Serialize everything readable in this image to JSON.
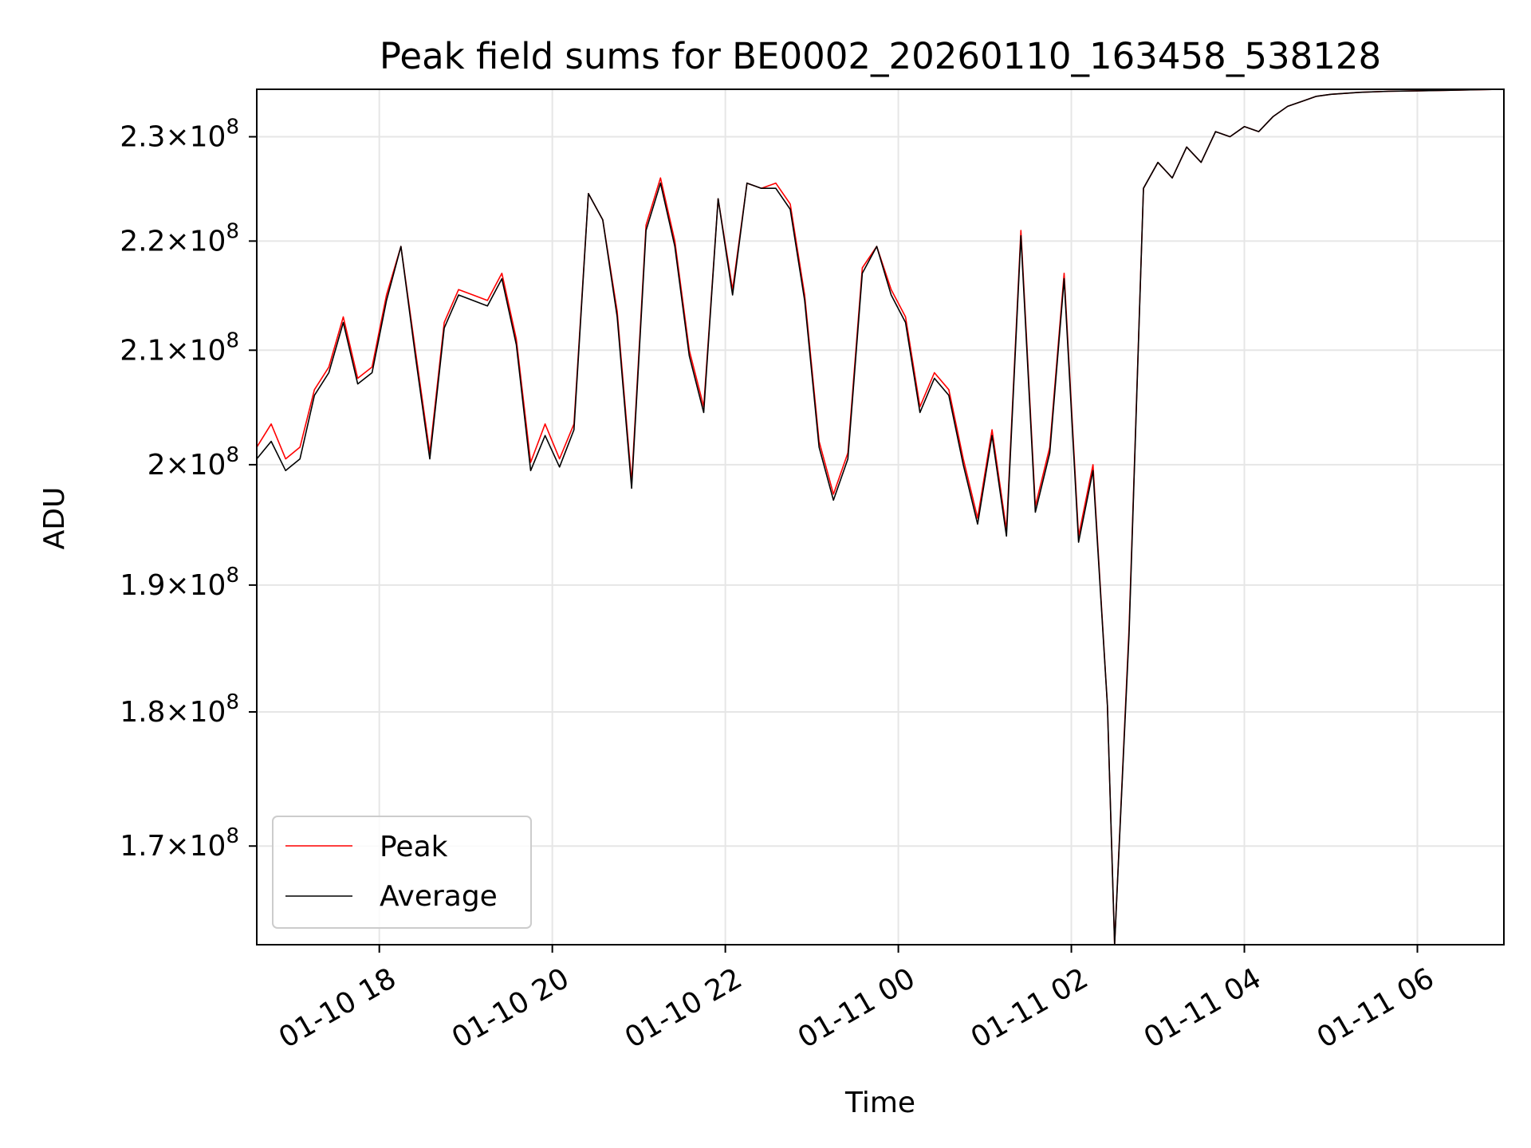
{
  "chart_data": {
    "type": "line",
    "title": "Peak field sums for BE0002_20260110_163458_538128",
    "xlabel": "Time",
    "ylabel": "ADU",
    "y_scale": "log",
    "ylim": [
      163000000,
      234700000
    ],
    "xlim": [
      "2026-01-10 16:35",
      "2026-01-11 07:00"
    ],
    "x_ticks": [
      {
        "t": "2026-01-10 18:00",
        "label": "01-10 18"
      },
      {
        "t": "2026-01-10 20:00",
        "label": "01-10 20"
      },
      {
        "t": "2026-01-10 22:00",
        "label": "01-10 22"
      },
      {
        "t": "2026-01-11 00:00",
        "label": "01-11 00"
      },
      {
        "t": "2026-01-11 02:00",
        "label": "01-11 02"
      },
      {
        "t": "2026-01-11 04:00",
        "label": "01-11 04"
      },
      {
        "t": "2026-01-11 06:00",
        "label": "01-11 06"
      }
    ],
    "y_ticks": [
      {
        "v": 170000000,
        "mantissa": "1.7",
        "exp": "8"
      },
      {
        "v": 180000000,
        "mantissa": "1.8",
        "exp": "8"
      },
      {
        "v": 190000000,
        "mantissa": "1.9",
        "exp": "8"
      },
      {
        "v": 200000000,
        "mantissa": "2",
        "exp": "8"
      },
      {
        "v": 210000000,
        "mantissa": "2.1",
        "exp": "8"
      },
      {
        "v": 220000000,
        "mantissa": "2.2",
        "exp": "8"
      },
      {
        "v": 230000000,
        "mantissa": "2.3",
        "exp": "8"
      }
    ],
    "grid": true,
    "legend_position": "lower-left",
    "series": [
      {
        "name": "Peak",
        "color": "#ff0000",
        "x": [
          "2026-01-10 16:35",
          "2026-01-10 16:45",
          "2026-01-10 16:55",
          "2026-01-10 17:05",
          "2026-01-10 17:15",
          "2026-01-10 17:25",
          "2026-01-10 17:35",
          "2026-01-10 17:45",
          "2026-01-10 17:55",
          "2026-01-10 18:05",
          "2026-01-10 18:15",
          "2026-01-10 18:25",
          "2026-01-10 18:35",
          "2026-01-10 18:45",
          "2026-01-10 18:55",
          "2026-01-10 19:05",
          "2026-01-10 19:15",
          "2026-01-10 19:25",
          "2026-01-10 19:35",
          "2026-01-10 19:45",
          "2026-01-10 19:55",
          "2026-01-10 20:05",
          "2026-01-10 20:15",
          "2026-01-10 20:25",
          "2026-01-10 20:35",
          "2026-01-10 20:45",
          "2026-01-10 20:55",
          "2026-01-10 21:05",
          "2026-01-10 21:15",
          "2026-01-10 21:25",
          "2026-01-10 21:35",
          "2026-01-10 21:45",
          "2026-01-10 21:55",
          "2026-01-10 22:05",
          "2026-01-10 22:15",
          "2026-01-10 22:25",
          "2026-01-10 22:35",
          "2026-01-10 22:45",
          "2026-01-10 22:55",
          "2026-01-10 23:05",
          "2026-01-10 23:15",
          "2026-01-10 23:25",
          "2026-01-10 23:35",
          "2026-01-10 23:45",
          "2026-01-10 23:55",
          "2026-01-11 00:05",
          "2026-01-11 00:15",
          "2026-01-11 00:25",
          "2026-01-11 00:35",
          "2026-01-11 00:45",
          "2026-01-11 00:55",
          "2026-01-11 01:05",
          "2026-01-11 01:15",
          "2026-01-11 01:25",
          "2026-01-11 01:35",
          "2026-01-11 01:45",
          "2026-01-11 01:55",
          "2026-01-11 02:05",
          "2026-01-11 02:15",
          "2026-01-11 02:25",
          "2026-01-11 02:30",
          "2026-01-11 02:40",
          "2026-01-11 02:50",
          "2026-01-11 03:00",
          "2026-01-11 03:10",
          "2026-01-11 03:20",
          "2026-01-11 03:30",
          "2026-01-11 03:40",
          "2026-01-11 03:50",
          "2026-01-11 04:00",
          "2026-01-11 04:10",
          "2026-01-11 04:20",
          "2026-01-11 04:30",
          "2026-01-11 04:40",
          "2026-01-11 04:50",
          "2026-01-11 05:00",
          "2026-01-11 05:20",
          "2026-01-11 05:40",
          "2026-01-11 06:00",
          "2026-01-11 06:20",
          "2026-01-11 06:40",
          "2026-01-11 07:00"
        ],
        "y": [
          201500000,
          203500000,
          200500000,
          201500000,
          206500000,
          208500000,
          213000000,
          207500000,
          208500000,
          215000000,
          219500000,
          210000000,
          201000000,
          212500000,
          215500000,
          215000000,
          214500000,
          217000000,
          211000000,
          200200000,
          203500000,
          200500000,
          203500000,
          224500000,
          222000000,
          213500000,
          198500000,
          221500000,
          226000000,
          220000000,
          210000000,
          205000000,
          224000000,
          215500000,
          225500000,
          225000000,
          225500000,
          223500000,
          215000000,
          202000000,
          197500000,
          201000000,
          217500000,
          219500000,
          215500000,
          213000000,
          205000000,
          208000000,
          206500000,
          200500000,
          195500000,
          203000000,
          194500000,
          221000000,
          196500000,
          201500000,
          217000000,
          194000000,
          200000000,
          180500000,
          163000000,
          186500000,
          225000000,
          227500000,
          226000000,
          229000000,
          227500000,
          230500000,
          230000000,
          231000000,
          230500000,
          232000000,
          233000000,
          233500000,
          234000000,
          234200000,
          234400000,
          234500000,
          234550000,
          234600000,
          234650000,
          234700000
        ]
      },
      {
        "name": "Average",
        "color": "#000000",
        "x": [
          "2026-01-10 16:35",
          "2026-01-10 16:45",
          "2026-01-10 16:55",
          "2026-01-10 17:05",
          "2026-01-10 17:15",
          "2026-01-10 17:25",
          "2026-01-10 17:35",
          "2026-01-10 17:45",
          "2026-01-10 17:55",
          "2026-01-10 18:05",
          "2026-01-10 18:15",
          "2026-01-10 18:25",
          "2026-01-10 18:35",
          "2026-01-10 18:45",
          "2026-01-10 18:55",
          "2026-01-10 19:05",
          "2026-01-10 19:15",
          "2026-01-10 19:25",
          "2026-01-10 19:35",
          "2026-01-10 19:45",
          "2026-01-10 19:55",
          "2026-01-10 20:05",
          "2026-01-10 20:15",
          "2026-01-10 20:25",
          "2026-01-10 20:35",
          "2026-01-10 20:45",
          "2026-01-10 20:55",
          "2026-01-10 21:05",
          "2026-01-10 21:15",
          "2026-01-10 21:25",
          "2026-01-10 21:35",
          "2026-01-10 21:45",
          "2026-01-10 21:55",
          "2026-01-10 22:05",
          "2026-01-10 22:15",
          "2026-01-10 22:25",
          "2026-01-10 22:35",
          "2026-01-10 22:45",
          "2026-01-10 22:55",
          "2026-01-10 23:05",
          "2026-01-10 23:15",
          "2026-01-10 23:25",
          "2026-01-10 23:35",
          "2026-01-10 23:45",
          "2026-01-10 23:55",
          "2026-01-11 00:05",
          "2026-01-11 00:15",
          "2026-01-11 00:25",
          "2026-01-11 00:35",
          "2026-01-11 00:45",
          "2026-01-11 00:55",
          "2026-01-11 01:05",
          "2026-01-11 01:15",
          "2026-01-11 01:25",
          "2026-01-11 01:35",
          "2026-01-11 01:45",
          "2026-01-11 01:55",
          "2026-01-11 02:05",
          "2026-01-11 02:15",
          "2026-01-11 02:25",
          "2026-01-11 02:30",
          "2026-01-11 02:40",
          "2026-01-11 02:50",
          "2026-01-11 03:00",
          "2026-01-11 03:10",
          "2026-01-11 03:20",
          "2026-01-11 03:30",
          "2026-01-11 03:40",
          "2026-01-11 03:50",
          "2026-01-11 04:00",
          "2026-01-11 04:10",
          "2026-01-11 04:20",
          "2026-01-11 04:30",
          "2026-01-11 04:40",
          "2026-01-11 04:50",
          "2026-01-11 05:00",
          "2026-01-11 05:20",
          "2026-01-11 05:40",
          "2026-01-11 06:00",
          "2026-01-11 06:20",
          "2026-01-11 06:40",
          "2026-01-11 07:00"
        ],
        "y": [
          200500000,
          202000000,
          199500000,
          200500000,
          206000000,
          208000000,
          212500000,
          207000000,
          208000000,
          214500000,
          219500000,
          209500000,
          200500000,
          212000000,
          215000000,
          214500000,
          214000000,
          216500000,
          210500000,
          199500000,
          202500000,
          199800000,
          203000000,
          224500000,
          222000000,
          213000000,
          198000000,
          221000000,
          225500000,
          219500000,
          209500000,
          204500000,
          224000000,
          215000000,
          225500000,
          225000000,
          225000000,
          223000000,
          214500000,
          201500000,
          197000000,
          200500000,
          217000000,
          219500000,
          215000000,
          212500000,
          204500000,
          207500000,
          206000000,
          200000000,
          195000000,
          202500000,
          194000000,
          220500000,
          196000000,
          201000000,
          216500000,
          193500000,
          199500000,
          180500000,
          163000000,
          186000000,
          225000000,
          227500000,
          226000000,
          229000000,
          227500000,
          230500000,
          230000000,
          231000000,
          230500000,
          232000000,
          233000000,
          233500000,
          234000000,
          234200000,
          234400000,
          234500000,
          234550000,
          234600000,
          234650000,
          234700000
        ]
      }
    ]
  }
}
